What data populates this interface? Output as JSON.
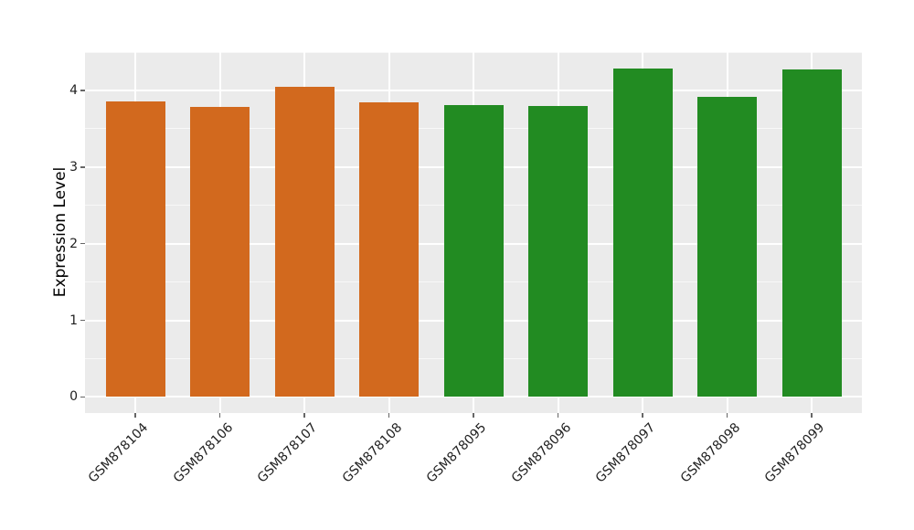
{
  "chart_data": {
    "type": "bar",
    "title": "",
    "xlabel": "",
    "ylabel": "Expression Level",
    "categories": [
      "GSM878104",
      "GSM878106",
      "GSM878107",
      "GSM878108",
      "GSM878095",
      "GSM878096",
      "GSM878097",
      "GSM878098",
      "GSM878099"
    ],
    "values": [
      3.86,
      3.79,
      4.05,
      3.84,
      3.81,
      3.8,
      4.29,
      3.91,
      4.27
    ],
    "groups": [
      "orange",
      "orange",
      "orange",
      "orange",
      "green",
      "green",
      "green",
      "green",
      "green"
    ],
    "group_colors": {
      "orange": "#D2691E",
      "green": "#228B22"
    },
    "yticks": [
      0,
      1,
      2,
      3,
      4
    ],
    "minor_yticks": [
      0.5,
      1.5,
      2.5,
      3.5,
      4.5
    ],
    "ylim": [
      -0.21,
      4.5
    ],
    "grid": true,
    "legend": "none",
    "x_tick_rotation_deg": 45,
    "panel_bg": "#EBEBEB",
    "grid_color": "#FFFFFF",
    "text_color": "#1F1F1F",
    "tick_color": "#666666"
  }
}
